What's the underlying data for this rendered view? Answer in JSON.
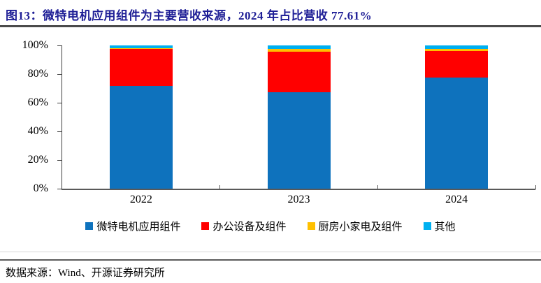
{
  "header": {
    "title": "图13：微特电机应用组件为主要营收来源，2024 年占比营收 77.61%",
    "title_color": "#1E1E96"
  },
  "footer": {
    "source": "数据来源：Wind、开源证券研究所"
  },
  "chart_data": {
    "type": "bar",
    "subtype": "stacked-100-percent",
    "categories": [
      "2022",
      "2023",
      "2024"
    ],
    "series": [
      {
        "name": "微特电机应用组件",
        "color": "#0E72BD",
        "values": [
          71.5,
          67.5,
          77.61
        ]
      },
      {
        "name": "办公设备及组件",
        "color": "#FF0000",
        "values": [
          26.2,
          28.3,
          18.6
        ]
      },
      {
        "name": "厨房小家电及组件",
        "color": "#FFC000",
        "values": [
          0.3,
          1.6,
          1.2
        ]
      },
      {
        "name": "其他",
        "color": "#00B0F0",
        "values": [
          2.0,
          2.6,
          2.59
        ]
      }
    ],
    "title": "",
    "xlabel": "",
    "ylabel": "",
    "ylim": [
      0,
      100
    ],
    "y_ticks": [
      "0%",
      "20%",
      "40%",
      "60%",
      "80%",
      "100%"
    ],
    "grid": false,
    "legend_position": "bottom",
    "highlight_value_note": "2024 微特电机应用组件占比 77.61%"
  }
}
